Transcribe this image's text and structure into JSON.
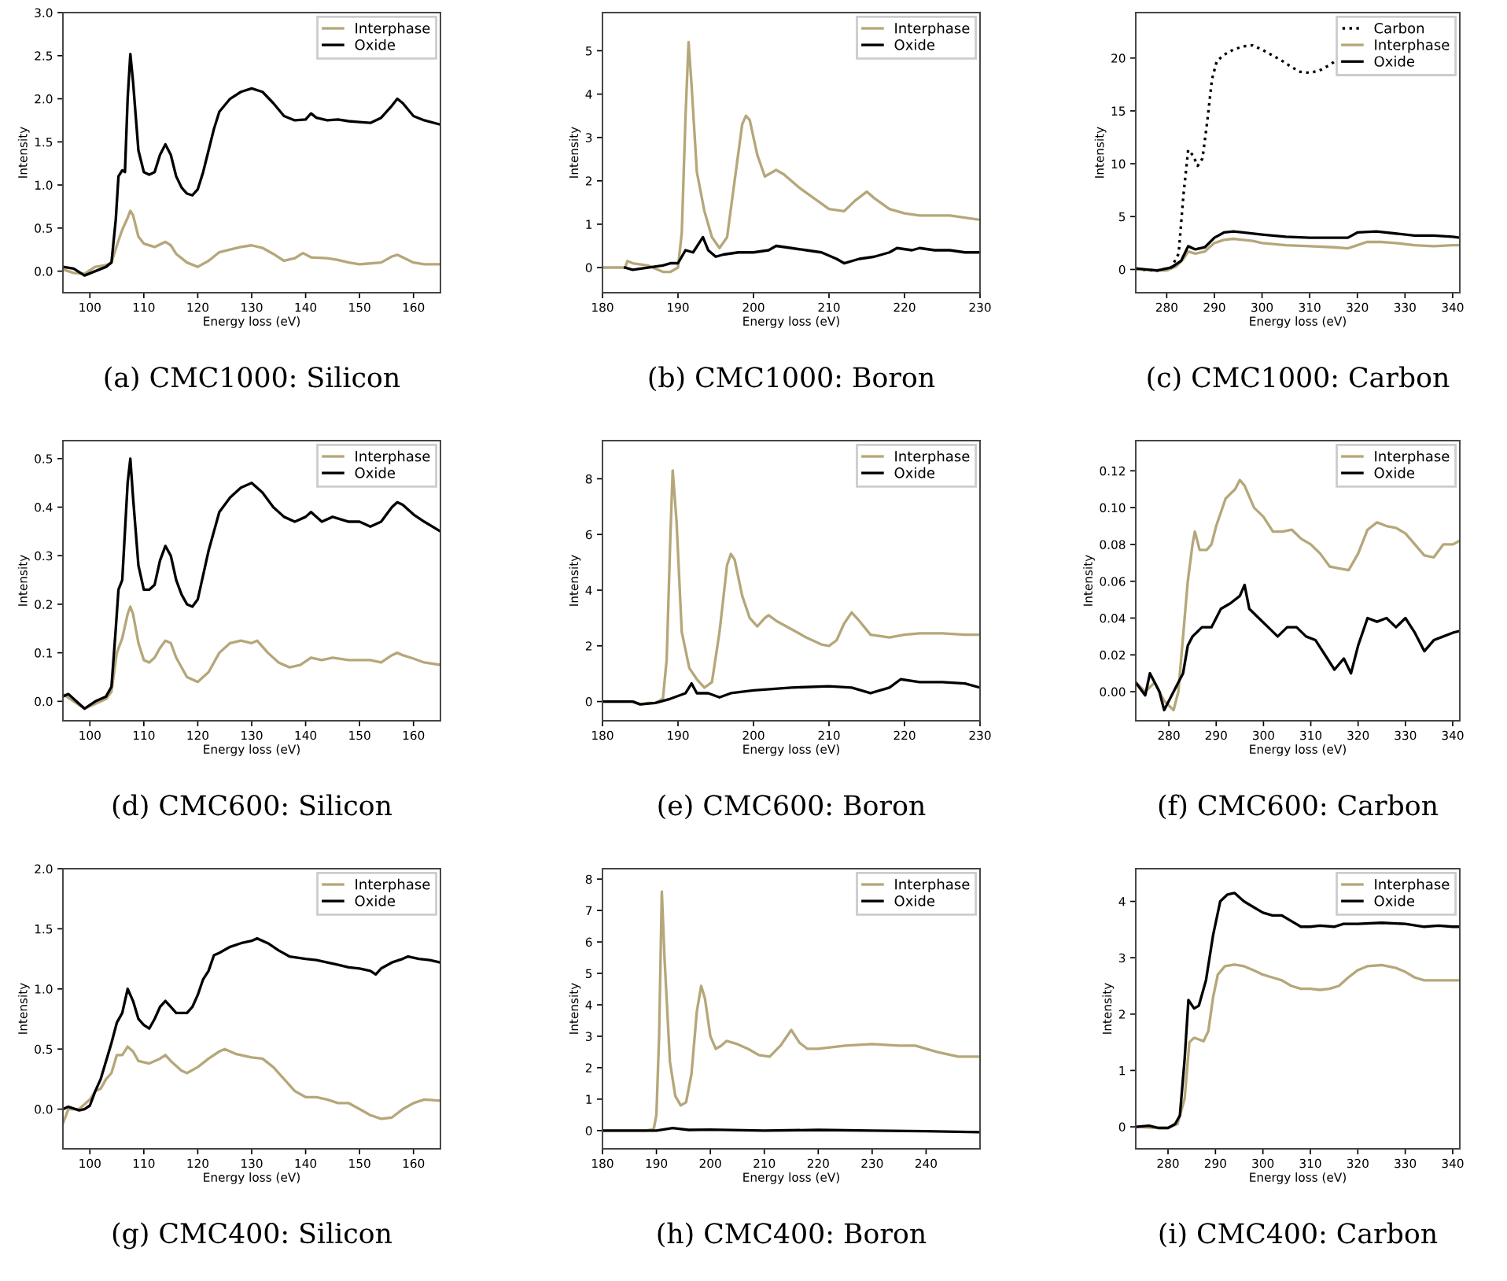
{
  "chart_data": [
    {
      "type": "line",
      "title": "(a) CMC1000: Silicon",
      "xlabel": "Energy loss (eV)",
      "ylabel": "Intensity",
      "xlim": [
        95,
        165
      ],
      "ylim": [
        -0.25,
        3.0
      ],
      "xticks": [
        100,
        110,
        120,
        130,
        140,
        150,
        160
      ],
      "yticks": [
        {
          "value": 0,
          "label": "0.0"
        },
        0.5,
        {
          "value": 1,
          "label": "1.0"
        },
        1.5,
        {
          "value": 2,
          "label": "2.0"
        },
        2.5,
        {
          "value": 3,
          "label": "3.0"
        }
      ],
      "legend": "top right",
      "series": [
        {
          "name": "Interphase",
          "color": "#b5a77a",
          "x": [
            95,
            97,
            99,
            101,
            103,
            104,
            105,
            106,
            107,
            107.5,
            108,
            109,
            110,
            112,
            114,
            115,
            116,
            118,
            120,
            122,
            124,
            126,
            128,
            130,
            132,
            134,
            136,
            138,
            139.5,
            141,
            144,
            146,
            148,
            150,
            152,
            154,
            156,
            157,
            158,
            160,
            162,
            165
          ],
          "values": [
            0.02,
            -0.02,
            -0.03,
            0.05,
            0.07,
            0.1,
            0.3,
            0.48,
            0.62,
            0.7,
            0.65,
            0.4,
            0.32,
            0.28,
            0.34,
            0.3,
            0.2,
            0.1,
            0.05,
            0.12,
            0.22,
            0.25,
            0.28,
            0.3,
            0.27,
            0.2,
            0.12,
            0.15,
            0.21,
            0.16,
            0.15,
            0.13,
            0.1,
            0.08,
            0.09,
            0.1,
            0.17,
            0.19,
            0.16,
            0.1,
            0.08,
            0.08
          ]
        },
        {
          "name": "Oxide",
          "color": "#000000",
          "x": [
            95,
            97,
            99,
            101,
            103,
            104,
            104.8,
            105.3,
            106,
            106.5,
            107,
            107.5,
            108,
            109,
            110,
            111,
            112,
            113,
            114,
            115,
            116,
            117,
            118,
            119,
            120,
            121,
            122,
            123,
            124,
            126,
            128,
            130,
            132,
            134,
            136,
            138,
            140,
            141,
            142,
            144,
            146,
            148,
            150,
            152,
            154,
            156,
            157,
            158,
            160,
            162,
            165
          ],
          "values": [
            0.05,
            0.03,
            -0.05,
            0.0,
            0.05,
            0.1,
            0.6,
            1.1,
            1.17,
            1.15,
            2.0,
            2.52,
            2.2,
            1.4,
            1.15,
            1.12,
            1.15,
            1.35,
            1.47,
            1.35,
            1.1,
            0.97,
            0.9,
            0.88,
            0.95,
            1.15,
            1.4,
            1.65,
            1.85,
            2.0,
            2.08,
            2.12,
            2.08,
            1.95,
            1.8,
            1.75,
            1.76,
            1.83,
            1.78,
            1.75,
            1.76,
            1.74,
            1.73,
            1.72,
            1.78,
            1.92,
            2.0,
            1.95,
            1.8,
            1.75,
            1.7
          ]
        }
      ]
    },
    {
      "type": "line",
      "title": "(b) CMC1000: Boron",
      "xlabel": "Energy loss (eV)",
      "ylabel": "Intensity",
      "xlim": [
        180,
        230
      ],
      "ylim": [
        -0.58,
        5.88
      ],
      "xticks": [
        180,
        190,
        200,
        210,
        220,
        230
      ],
      "yticks": [
        0,
        1,
        2,
        3,
        4,
        5
      ],
      "legend": "top right",
      "series": [
        {
          "name": "Interphase",
          "color": "#b5a77a",
          "x": [
            180,
            183,
            183.3,
            184,
            186,
            188,
            189,
            190,
            190.5,
            191,
            191.4,
            191.8,
            192.5,
            193.5,
            194.5,
            195.5,
            196.5,
            197.5,
            198.5,
            199,
            199.5,
            200.5,
            201.5,
            202.5,
            203,
            204,
            206,
            208,
            210,
            212,
            213.5,
            215,
            216,
            218,
            220,
            222,
            224,
            226,
            228,
            230
          ],
          "values": [
            0,
            0,
            0.15,
            0.1,
            0.05,
            -0.1,
            -0.1,
            0.0,
            0.8,
            3.5,
            5.2,
            4.2,
            2.2,
            1.3,
            0.7,
            0.45,
            0.7,
            2.0,
            3.3,
            3.5,
            3.4,
            2.6,
            2.1,
            2.2,
            2.25,
            2.15,
            1.85,
            1.6,
            1.35,
            1.3,
            1.55,
            1.75,
            1.6,
            1.35,
            1.25,
            1.2,
            1.2,
            1.2,
            1.15,
            1.1
          ]
        },
        {
          "name": "Oxide",
          "color": "#000000",
          "x": [
            183,
            184,
            186,
            188,
            189,
            190,
            191,
            192,
            193.3,
            194,
            195,
            196,
            198,
            200,
            202,
            203,
            205,
            207,
            209,
            211,
            212,
            214,
            216,
            218,
            219,
            221,
            222,
            224,
            226,
            228,
            230
          ],
          "values": [
            0,
            -0.05,
            0.0,
            0.05,
            0.1,
            0.1,
            0.4,
            0.35,
            0.7,
            0.4,
            0.25,
            0.3,
            0.35,
            0.35,
            0.4,
            0.5,
            0.45,
            0.4,
            0.35,
            0.2,
            0.1,
            0.2,
            0.25,
            0.35,
            0.45,
            0.4,
            0.45,
            0.4,
            0.4,
            0.35,
            0.35
          ]
        }
      ]
    },
    {
      "type": "line",
      "title": "(c) CMC1000: Carbon",
      "xlabel": "Energy loss (eV)",
      "ylabel": "Intensity",
      "xlim": [
        273.5,
        341.5
      ],
      "ylim": [
        -2.2,
        24.3
      ],
      "xticks": [
        280,
        290,
        300,
        310,
        320,
        330,
        340
      ],
      "yticks": [
        0,
        5,
        10,
        15,
        20
      ],
      "legend": "top right",
      "series": [
        {
          "name": "Carbon",
          "color": "#000000",
          "line_style": "dotted",
          "x": [
            273.5,
            278,
            281,
            282.5,
            283.5,
            284.5,
            285.5,
            286.5,
            287.5,
            288.5,
            289.5,
            290.5,
            292,
            294,
            296,
            298,
            300,
            302,
            304,
            306,
            308,
            310,
            312,
            314,
            316
          ],
          "values": [
            0,
            -0.1,
            0.2,
            1.5,
            7,
            11.3,
            10.8,
            9.8,
            10.5,
            14,
            18,
            19.7,
            20.3,
            20.8,
            21.1,
            21.2,
            20.8,
            20.3,
            19.8,
            19.2,
            18.7,
            18.6,
            18.8,
            19.3,
            19.9
          ]
        },
        {
          "name": "Interphase",
          "color": "#b5a77a",
          "x": [
            273.5,
            280,
            282,
            283.5,
            284.5,
            286,
            288,
            290,
            292,
            294,
            296,
            298,
            300,
            305,
            310,
            315,
            318,
            320,
            322,
            325,
            328,
            332,
            336,
            340,
            341.5
          ],
          "values": [
            0,
            -0.1,
            0.3,
            1.0,
            1.7,
            1.5,
            1.7,
            2.5,
            2.8,
            2.9,
            2.8,
            2.7,
            2.5,
            2.3,
            2.2,
            2.1,
            2.0,
            2.3,
            2.6,
            2.6,
            2.5,
            2.3,
            2.2,
            2.3,
            2.3
          ]
        },
        {
          "name": "Oxide",
          "color": "#000000",
          "x": [
            273.5,
            278,
            281,
            283,
            284.5,
            286,
            288,
            290,
            292,
            294,
            296,
            300,
            305,
            310,
            315,
            318,
            320,
            324,
            328,
            332,
            336,
            340,
            341.5
          ],
          "values": [
            0.1,
            -0.1,
            0.2,
            0.8,
            2.2,
            1.9,
            2.1,
            3.0,
            3.5,
            3.6,
            3.5,
            3.3,
            3.1,
            3.0,
            3.0,
            3.0,
            3.5,
            3.6,
            3.4,
            3.2,
            3.2,
            3.1,
            3.0
          ]
        }
      ]
    },
    {
      "type": "line",
      "title": "(d) CMC600: Silicon",
      "xlabel": "Energy loss (eV)",
      "ylabel": "Intensity",
      "xlim": [
        95,
        165
      ],
      "ylim": [
        -0.04,
        0.537
      ],
      "xticks": [
        100,
        110,
        120,
        130,
        140,
        150,
        160
      ],
      "yticks": [
        {
          "value": 0,
          "label": "0.0"
        },
        0.1,
        0.2,
        0.3,
        0.4,
        0.5
      ],
      "legend": "top right",
      "series": [
        {
          "name": "Interphase",
          "color": "#b5a77a",
          "x": [
            95,
            97,
            99,
            101,
            103,
            104,
            105,
            106,
            107,
            107.5,
            108,
            109,
            110,
            111,
            112,
            113,
            114,
            115,
            116,
            118,
            120,
            122,
            124,
            126,
            128,
            130,
            131,
            133,
            135,
            137,
            139,
            141,
            143,
            145,
            148,
            150,
            152,
            154,
            156,
            157,
            158,
            160,
            162,
            165
          ],
          "values": [
            0.015,
            0.0,
            -0.015,
            -0.005,
            0.005,
            0.02,
            0.1,
            0.13,
            0.18,
            0.195,
            0.18,
            0.12,
            0.085,
            0.08,
            0.09,
            0.11,
            0.125,
            0.12,
            0.09,
            0.05,
            0.04,
            0.06,
            0.1,
            0.12,
            0.125,
            0.12,
            0.125,
            0.1,
            0.08,
            0.07,
            0.075,
            0.09,
            0.085,
            0.09,
            0.085,
            0.085,
            0.085,
            0.08,
            0.095,
            0.1,
            0.095,
            0.088,
            0.08,
            0.075
          ]
        },
        {
          "name": "Oxide",
          "color": "#000000",
          "x": [
            95,
            96,
            97,
            99,
            101,
            103,
            104,
            104.8,
            105.3,
            106,
            107,
            107.5,
            108,
            109,
            110,
            111,
            112,
            113,
            114,
            115,
            116,
            117,
            118,
            119,
            120,
            121,
            122,
            123,
            124,
            126,
            128,
            130,
            132,
            134,
            136,
            138,
            140,
            141,
            143,
            145,
            148,
            150,
            152,
            154,
            156,
            157,
            158,
            160,
            162,
            165
          ],
          "values": [
            0.01,
            0.015,
            0.005,
            -0.015,
            0.0,
            0.01,
            0.03,
            0.15,
            0.23,
            0.25,
            0.45,
            0.5,
            0.42,
            0.28,
            0.23,
            0.23,
            0.24,
            0.29,
            0.32,
            0.3,
            0.25,
            0.22,
            0.2,
            0.195,
            0.21,
            0.26,
            0.31,
            0.35,
            0.39,
            0.42,
            0.44,
            0.45,
            0.43,
            0.4,
            0.38,
            0.37,
            0.38,
            0.39,
            0.37,
            0.38,
            0.37,
            0.37,
            0.36,
            0.37,
            0.4,
            0.41,
            0.405,
            0.385,
            0.37,
            0.35
          ]
        }
      ]
    },
    {
      "type": "line",
      "title": "(e) CMC600: Boron",
      "xlabel": "Energy loss (eV)",
      "ylabel": "Intensity",
      "xlim": [
        180,
        230
      ],
      "ylim": [
        -0.69,
        9.37
      ],
      "xticks": [
        180,
        190,
        200,
        210,
        220,
        230
      ],
      "yticks": [
        0,
        2,
        4,
        6,
        8
      ],
      "legend": "top right",
      "series": [
        {
          "name": "Interphase",
          "color": "#b5a77a",
          "x": [
            180,
            184,
            185,
            186,
            187,
            188,
            188.5,
            189,
            189.3,
            189.8,
            190.5,
            191.5,
            192.5,
            193.5,
            194.5,
            195.5,
            196.5,
            197,
            197.5,
            198.5,
            199.5,
            200.5,
            201.5,
            202,
            203,
            205,
            207,
            209,
            210,
            211,
            212,
            213,
            214,
            215.5,
            218,
            220,
            222,
            225,
            228,
            230
          ],
          "values": [
            0,
            0,
            -0.1,
            -0.05,
            -0.05,
            0.1,
            1.5,
            6,
            8.3,
            6.5,
            2.5,
            1.2,
            0.8,
            0.5,
            0.7,
            2.5,
            4.9,
            5.3,
            5.1,
            3.8,
            3.0,
            2.7,
            3.0,
            3.1,
            2.9,
            2.6,
            2.3,
            2.05,
            2.0,
            2.2,
            2.8,
            3.2,
            2.9,
            2.4,
            2.3,
            2.4,
            2.45,
            2.45,
            2.4,
            2.4
          ]
        },
        {
          "name": "Oxide",
          "color": "#000000",
          "x": [
            180,
            184,
            185,
            187,
            189,
            191,
            191.8,
            192.5,
            194,
            195.5,
            197,
            200,
            205,
            210,
            213,
            215.5,
            218,
            219.5,
            222,
            225,
            228,
            230
          ],
          "values": [
            0,
            0,
            -0.1,
            -0.05,
            0.1,
            0.3,
            0.65,
            0.3,
            0.3,
            0.15,
            0.3,
            0.4,
            0.5,
            0.55,
            0.5,
            0.3,
            0.5,
            0.8,
            0.7,
            0.7,
            0.65,
            0.5
          ]
        }
      ]
    },
    {
      "type": "line",
      "title": "(f) CMC600: Carbon",
      "xlabel": "Energy loss (eV)",
      "ylabel": "Intensity",
      "xlim": [
        273,
        341.5
      ],
      "ylim": [
        -0.0158,
        0.1364
      ],
      "xticks": [
        280,
        290,
        300,
        310,
        320,
        330,
        340
      ],
      "yticks": [
        {
          "value": 0,
          "label": "0.00"
        },
        {
          "value": 0.02,
          "label": "0.02"
        },
        {
          "value": 0.04,
          "label": "0.04"
        },
        {
          "value": 0.06,
          "label": "0.06"
        },
        {
          "value": 0.08,
          "label": "0.08"
        },
        {
          "value": 0.1,
          "label": "0.10"
        },
        {
          "value": 0.12,
          "label": "0.12"
        }
      ],
      "legend": "top right",
      "series": [
        {
          "name": "Interphase",
          "color": "#b5a77a",
          "x": [
            273,
            275,
            277,
            279,
            281,
            282,
            283,
            284,
            285,
            285.5,
            286.5,
            288,
            289,
            290,
            292,
            294,
            295,
            296,
            298,
            300,
            302,
            304,
            306,
            308,
            310,
            312,
            314,
            316,
            318,
            320,
            322,
            324,
            326,
            328,
            330,
            332,
            334,
            336,
            338,
            340,
            341.5
          ],
          "values": [
            0.005,
            0.0,
            0.005,
            -0.005,
            -0.01,
            0.0,
            0.03,
            0.06,
            0.08,
            0.087,
            0.077,
            0.077,
            0.08,
            0.09,
            0.105,
            0.11,
            0.115,
            0.112,
            0.1,
            0.095,
            0.087,
            0.087,
            0.088,
            0.083,
            0.08,
            0.075,
            0.068,
            0.067,
            0.066,
            0.075,
            0.088,
            0.092,
            0.09,
            0.089,
            0.086,
            0.08,
            0.074,
            0.073,
            0.08,
            0.08,
            0.082
          ]
        },
        {
          "name": "Oxide",
          "color": "#000000",
          "x": [
            273,
            275,
            276,
            278,
            279,
            281,
            283,
            284,
            285,
            287,
            289,
            291,
            293,
            295,
            296,
            297,
            299,
            301,
            303,
            305,
            307,
            309,
            311,
            313,
            315,
            317,
            318.5,
            320,
            322,
            324,
            326,
            328,
            330,
            332,
            334,
            336,
            338,
            340,
            341.5
          ],
          "values": [
            0.005,
            -0.002,
            0.01,
            0.0,
            -0.01,
            0.0,
            0.01,
            0.025,
            0.03,
            0.035,
            0.035,
            0.045,
            0.048,
            0.052,
            0.058,
            0.045,
            0.04,
            0.035,
            0.03,
            0.035,
            0.035,
            0.03,
            0.028,
            0.02,
            0.012,
            0.018,
            0.01,
            0.025,
            0.04,
            0.038,
            0.04,
            0.035,
            0.04,
            0.032,
            0.022,
            0.028,
            0.03,
            0.032,
            0.033
          ]
        }
      ]
    },
    {
      "type": "line",
      "title": "(g) CMC400: Silicon",
      "xlabel": "Energy loss (eV)",
      "ylabel": "Intensity",
      "xlim": [
        95,
        165
      ],
      "ylim": [
        -0.33,
        2.0
      ],
      "xticks": [
        100,
        110,
        120,
        130,
        140,
        150,
        160
      ],
      "yticks": [
        {
          "value": 0,
          "label": "0.0"
        },
        0.5,
        {
          "value": 1,
          "label": "1.0"
        },
        1.5,
        {
          "value": 2,
          "label": "2.0"
        }
      ],
      "legend": "top right",
      "series": [
        {
          "name": "Interphase",
          "color": "#b5a77a",
          "x": [
            95,
            96,
            98,
            100,
            101,
            102,
            103,
            104,
            105,
            106,
            107,
            108,
            109,
            111,
            113,
            114,
            115,
            117,
            118,
            120,
            122,
            124,
            125,
            127,
            130,
            132,
            134,
            136,
            138,
            140,
            142,
            144,
            146,
            148,
            150,
            152,
            154,
            156,
            158,
            160,
            162,
            165
          ],
          "values": [
            -0.12,
            0.0,
            0.0,
            0.08,
            0.15,
            0.17,
            0.25,
            0.3,
            0.45,
            0.45,
            0.52,
            0.48,
            0.4,
            0.38,
            0.42,
            0.45,
            0.4,
            0.32,
            0.3,
            0.35,
            0.42,
            0.48,
            0.5,
            0.46,
            0.43,
            0.42,
            0.35,
            0.25,
            0.15,
            0.1,
            0.1,
            0.08,
            0.05,
            0.05,
            0.0,
            -0.05,
            -0.08,
            -0.07,
            0.0,
            0.05,
            0.08,
            0.07
          ]
        },
        {
          "name": "Oxide",
          "color": "#000000",
          "x": [
            95,
            96,
            98,
            99,
            100,
            101,
            102,
            103,
            104,
            105,
            106,
            107,
            108,
            109,
            110,
            111,
            112,
            113,
            114,
            115,
            116,
            118,
            119,
            120,
            121,
            122,
            123,
            124,
            126,
            128,
            130,
            131,
            133,
            135,
            137,
            140,
            142,
            144,
            146,
            148,
            150,
            152,
            153,
            154,
            156,
            158,
            159,
            161,
            163,
            165
          ],
          "values": [
            0.0,
            0.02,
            -0.01,
            0.0,
            0.03,
            0.15,
            0.25,
            0.4,
            0.55,
            0.72,
            0.8,
            1.0,
            0.9,
            0.75,
            0.7,
            0.67,
            0.75,
            0.85,
            0.9,
            0.85,
            0.8,
            0.8,
            0.85,
            0.95,
            1.08,
            1.15,
            1.28,
            1.3,
            1.35,
            1.38,
            1.4,
            1.42,
            1.38,
            1.32,
            1.27,
            1.25,
            1.24,
            1.22,
            1.2,
            1.18,
            1.17,
            1.15,
            1.12,
            1.17,
            1.22,
            1.25,
            1.27,
            1.25,
            1.24,
            1.22
          ]
        }
      ]
    },
    {
      "type": "line",
      "title": "(h) CMC400: Boron",
      "xlabel": "Energy loss (eV)",
      "ylabel": "Intensity",
      "xlim": [
        180,
        250
      ],
      "ylim": [
        -0.58,
        8.33
      ],
      "xticks": [
        180,
        190,
        200,
        210,
        220,
        230,
        240
      ],
      "yticks": [
        0,
        1,
        2,
        3,
        4,
        5,
        6,
        7,
        8
      ],
      "legend": "top right",
      "series": [
        {
          "name": "Interphase",
          "color": "#b5a77a",
          "x": [
            180,
            188,
            189.5,
            190,
            190.5,
            191,
            191.5,
            192.5,
            193.5,
            194.5,
            195.5,
            196.5,
            197.5,
            198.3,
            199,
            200,
            201,
            202,
            203,
            205,
            207,
            209,
            211,
            213,
            215,
            216.5,
            218,
            220,
            225,
            230,
            235,
            238,
            242,
            246,
            250
          ],
          "values": [
            0,
            0,
            0.05,
            0.5,
            3,
            7.6,
            5.5,
            2.2,
            1.1,
            0.8,
            0.9,
            1.8,
            3.8,
            4.6,
            4.2,
            3.0,
            2.6,
            2.7,
            2.85,
            2.75,
            2.6,
            2.4,
            2.35,
            2.7,
            3.2,
            2.8,
            2.6,
            2.6,
            2.7,
            2.75,
            2.7,
            2.7,
            2.5,
            2.35,
            2.35
          ]
        },
        {
          "name": "Oxide",
          "color": "#000000",
          "x": [
            180,
            190,
            193,
            196,
            200,
            210,
            220,
            230,
            240,
            250
          ],
          "values": [
            0,
            0,
            0.08,
            0.02,
            0.03,
            0.0,
            0.02,
            0.0,
            -0.02,
            -0.05
          ]
        }
      ]
    },
    {
      "type": "line",
      "title": "(i) CMC400: Carbon",
      "xlabel": "Energy loss (eV)",
      "ylabel": "Intensity",
      "xlim": [
        273.2,
        341.5
      ],
      "ylim": [
        -0.39,
        4.58
      ],
      "xticks": [
        280,
        290,
        300,
        310,
        320,
        330,
        340
      ],
      "yticks": [
        0,
        1,
        2,
        3,
        4
      ],
      "legend": "top right",
      "series": [
        {
          "name": "Interphase",
          "color": "#b5a77a",
          "x": [
            273.2,
            278,
            280,
            282,
            283.5,
            284.5,
            285.5,
            286.5,
            287.5,
            288.5,
            289.5,
            290.5,
            292,
            294,
            296,
            298,
            300,
            302,
            304,
            306,
            308,
            310,
            312,
            314,
            316,
            318,
            320,
            322,
            325,
            328,
            330,
            332,
            334,
            336,
            338,
            340,
            341.5
          ],
          "values": [
            0.0,
            -0.02,
            -0.02,
            0.05,
            0.5,
            1.5,
            1.58,
            1.55,
            1.52,
            1.7,
            2.3,
            2.7,
            2.85,
            2.88,
            2.85,
            2.78,
            2.7,
            2.65,
            2.6,
            2.5,
            2.45,
            2.45,
            2.43,
            2.45,
            2.5,
            2.65,
            2.78,
            2.85,
            2.87,
            2.82,
            2.75,
            2.65,
            2.6,
            2.6,
            2.6,
            2.6,
            2.6
          ]
        },
        {
          "name": "Oxide",
          "color": "#000000",
          "x": [
            273.2,
            276,
            278,
            280,
            281.5,
            282.5,
            283.5,
            284.3,
            285.5,
            286.5,
            288,
            289.5,
            291,
            292.5,
            294,
            296,
            298,
            300,
            302,
            304,
            306,
            308,
            310,
            312,
            315,
            317,
            320,
            325,
            330,
            334,
            337,
            340,
            341.5
          ],
          "values": [
            0.0,
            0.02,
            -0.02,
            -0.02,
            0.05,
            0.2,
            1.2,
            2.25,
            2.1,
            2.15,
            2.6,
            3.4,
            4.0,
            4.12,
            4.15,
            4.0,
            3.9,
            3.8,
            3.75,
            3.75,
            3.65,
            3.55,
            3.55,
            3.57,
            3.55,
            3.6,
            3.6,
            3.62,
            3.6,
            3.55,
            3.57,
            3.55,
            3.55
          ]
        }
      ]
    }
  ]
}
